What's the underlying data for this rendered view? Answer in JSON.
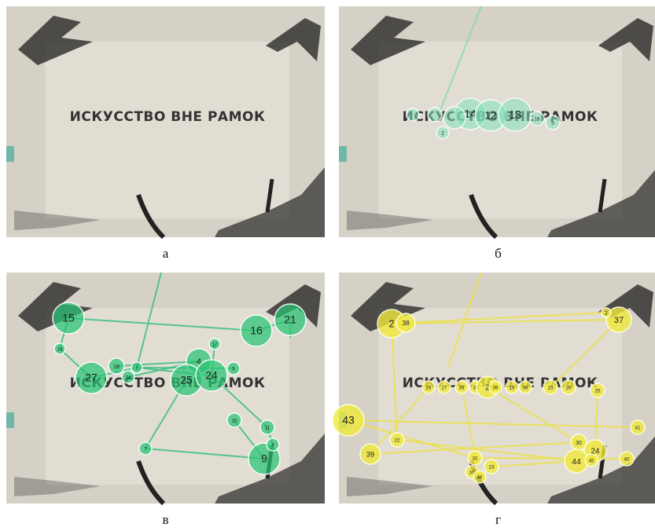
{
  "panels": [
    {
      "caption": "а",
      "wall_text": "ИСКУССТВО ВНЕ РАМОК"
    },
    {
      "caption": "б",
      "wall_text": "ИСКУССТВО ВНЕ РАМОК",
      "fixations": [
        "14",
        "12",
        "13",
        "18",
        "5",
        "2"
      ]
    },
    {
      "caption": "в",
      "wall_text": "ИСКУССТВО ВНЕ РАМОК",
      "fixations": [
        "15",
        "16",
        "21",
        "14",
        "17",
        "27",
        "18",
        "34",
        "1",
        "4",
        "25",
        "24",
        "5",
        "10",
        "11",
        "7",
        "9",
        "8"
      ]
    },
    {
      "caption": "г",
      "wall_text": "ИСКУССТВО ВНЕ РАМОК",
      "fixations": [
        "2",
        "38",
        "37",
        "2",
        "28",
        "27",
        "33",
        "34",
        "2",
        "39",
        "19",
        "36",
        "15",
        "26",
        "25",
        "43",
        "41",
        "22",
        "30",
        "24",
        "39",
        "32",
        "44",
        "45",
        "40",
        "23",
        "37",
        "46"
      ]
    }
  ]
}
